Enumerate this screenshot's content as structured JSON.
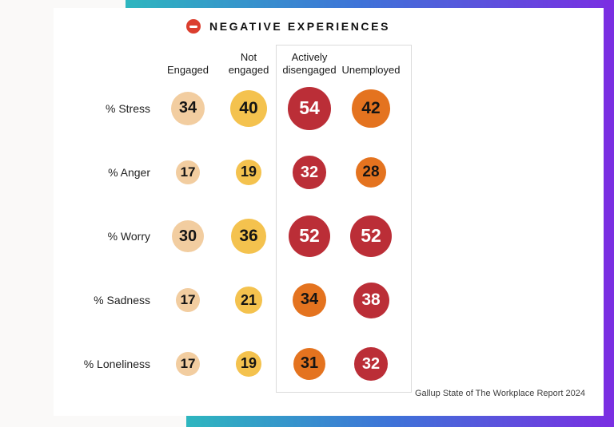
{
  "title": {
    "label": "NEGATIVE EXPERIENCES",
    "icon": "minus-icon",
    "icon_color": "#DB3E2E"
  },
  "source": "Gallup State of The Workplace Report 2024",
  "theme": {
    "gradient": [
      "#2EB6BF",
      "#3E73D8",
      "#7A2EE2"
    ],
    "card_bg": "#FFFFFF",
    "page_bg": "#FAF9F8",
    "box_border": "#DBDBDB"
  },
  "palette": {
    "peach": {
      "fill": "#F2CDA0",
      "text": "#141414"
    },
    "yellow": {
      "fill": "#F4C24E",
      "text": "#141414"
    },
    "orange": {
      "fill": "#E4731F",
      "text": "#141414"
    },
    "red": {
      "fill": "#BB2E37",
      "text": "#FFFFFF"
    }
  },
  "chart_data": {
    "type": "bubble-table",
    "title": "NEGATIVE EXPERIENCES",
    "columns": [
      "Engaged",
      "Not\nengaged",
      "Actively\ndisengaged",
      "Unemployed"
    ],
    "boxed_columns": [
      2,
      3
    ],
    "rows": [
      {
        "label": "% Stress",
        "values": [
          34,
          40,
          54,
          42
        ],
        "colors": [
          "peach",
          "yellow",
          "red",
          "orange"
        ]
      },
      {
        "label": "% Anger",
        "values": [
          17,
          19,
          32,
          28
        ],
        "colors": [
          "peach",
          "yellow",
          "red",
          "orange"
        ]
      },
      {
        "label": "% Worry",
        "values": [
          30,
          36,
          52,
          52
        ],
        "colors": [
          "peach",
          "yellow",
          "red",
          "red"
        ]
      },
      {
        "label": "% Sadness",
        "values": [
          17,
          21,
          34,
          38
        ],
        "colors": [
          "peach",
          "yellow",
          "orange",
          "red"
        ]
      },
      {
        "label": "% Loneliness",
        "values": [
          17,
          19,
          31,
          32
        ],
        "colors": [
          "peach",
          "yellow",
          "orange",
          "red"
        ]
      }
    ],
    "value_unit": "%",
    "size_encoding": "bubble diameter proportional to sqrt(value)",
    "legend_position": "none",
    "source": "Gallup State of The Workplace Report 2024"
  }
}
